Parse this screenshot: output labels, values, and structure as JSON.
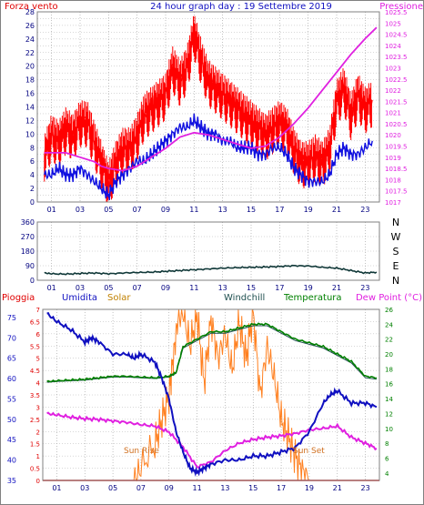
{
  "chart_data": [
    {
      "type": "line",
      "title": "24 hour graph day : 19 Settembre 2019",
      "left_axis_label": "Forza vento",
      "right_axis_label": "Pressione",
      "x_ticks": [
        "01",
        "03",
        "05",
        "07",
        "09",
        "11",
        "13",
        "15",
        "17",
        "19",
        "21",
        "23"
      ],
      "x_range": [
        0,
        24
      ],
      "left_ticks": [
        0,
        1,
        2,
        3,
        4,
        5,
        6,
        7,
        8,
        9,
        10,
        11,
        12,
        13,
        14,
        15,
        16,
        17,
        18,
        19,
        20,
        21,
        22,
        23,
        24,
        25,
        26,
        27,
        28
      ],
      "left_ylim": [
        0,
        28
      ],
      "right_ticks": [
        "1017",
        "1017.5",
        "1018",
        "1018.5",
        "1019",
        "1019.5",
        "1020",
        "1020.5",
        "1021",
        "1021.5",
        "1022",
        "1022.5",
        "1023",
        "1023.5",
        "1024",
        "1024.5",
        "1025",
        "1025.5"
      ],
      "right_ylim": [
        1017,
        1025.5
      ],
      "grid": true,
      "colors": {
        "gust": "#ff0000",
        "wind": "#1010e0",
        "pressure": "#e020e0"
      },
      "series": [
        {
          "name": "Forza vento",
          "role": "gust",
          "x": [
            0.5,
            1,
            1.5,
            2,
            2.5,
            3,
            3.5,
            4,
            4.5,
            5,
            5.5,
            6,
            6.5,
            7,
            7.5,
            8,
            8.5,
            9,
            9.5,
            10,
            10.5,
            11,
            11.5,
            12,
            12.5,
            13,
            13.5,
            14,
            14.5,
            15,
            15.5,
            16,
            16.5,
            17,
            17.5,
            18,
            18.5,
            19,
            19.5,
            20,
            20.5,
            21,
            21.5,
            22,
            22.5,
            23,
            23.5
          ],
          "values": [
            7,
            10,
            9,
            11,
            10,
            12,
            12,
            9,
            6,
            3,
            6,
            8,
            8,
            10,
            13,
            14,
            15,
            16,
            20,
            18,
            20,
            25,
            21,
            18,
            17,
            16,
            15,
            14,
            13,
            12,
            11,
            10,
            11,
            12,
            11,
            8,
            6,
            6,
            7,
            6,
            8,
            15,
            17,
            13,
            16,
            14,
            15
          ]
        },
        {
          "name": "",
          "role": "wind",
          "x": [
            0.5,
            1,
            1.5,
            2,
            2.5,
            3,
            3.5,
            4,
            4.5,
            5,
            5.5,
            6,
            6.5,
            7,
            7.5,
            8,
            8.5,
            9,
            9.5,
            10,
            10.5,
            11,
            11.5,
            12,
            12.5,
            13,
            13.5,
            14,
            14.5,
            15,
            15.5,
            16,
            16.5,
            17,
            17.5,
            18,
            18.5,
            19,
            19.5,
            20,
            20.5,
            21,
            21.5,
            22,
            22.5,
            23,
            23.5
          ],
          "values": [
            4,
            4,
            5,
            4,
            4,
            5,
            4,
            3,
            2,
            1,
            3,
            4,
            5,
            6,
            6,
            7,
            8,
            9,
            10,
            11,
            11,
            12,
            11,
            10,
            10,
            9,
            9,
            8,
            8,
            8,
            7,
            7,
            8,
            8,
            7,
            5,
            4,
            3,
            3,
            3,
            4,
            7,
            8,
            7,
            7,
            8,
            9
          ]
        },
        {
          "name": "Pressione",
          "role": "pressure",
          "x": [
            0.5,
            1,
            2,
            3,
            4,
            4.5,
            5,
            6,
            7,
            8,
            9,
            10,
            11,
            12,
            13,
            14,
            15,
            16,
            17,
            18,
            19,
            20,
            21,
            22,
            23,
            23.8
          ],
          "values": [
            1019.2,
            1019.2,
            1019.2,
            1019.0,
            1018.8,
            1018.6,
            1018.5,
            1018.4,
            1018.6,
            1019.0,
            1019.4,
            1019.9,
            1020.1,
            1020.0,
            1019.8,
            1019.6,
            1019.4,
            1019.5,
            1019.9,
            1020.5,
            1021.2,
            1022.0,
            1022.8,
            1023.6,
            1024.3,
            1024.8
          ]
        }
      ]
    },
    {
      "type": "line",
      "x_ticks": [
        "01",
        "03",
        "05",
        "07",
        "09",
        "11",
        "13",
        "15",
        "17",
        "19",
        "21",
        "23"
      ],
      "x_range": [
        0,
        24
      ],
      "left_ticks": [
        0,
        90,
        180,
        270,
        360
      ],
      "left_ylim": [
        0,
        360
      ],
      "right_labels": [
        "N",
        "W",
        "S",
        "E",
        "N"
      ],
      "grid": true,
      "series": [
        {
          "name": "",
          "role": "direction",
          "color": "#103838",
          "x": [
            0.5,
            1,
            2,
            3,
            4,
            5,
            6,
            7,
            8,
            9,
            10,
            11,
            12,
            13,
            14,
            15,
            16,
            17,
            18,
            19,
            20,
            21,
            22,
            23,
            23.8
          ],
          "values": [
            45,
            40,
            38,
            42,
            45,
            40,
            45,
            48,
            50,
            55,
            60,
            65,
            70,
            75,
            78,
            80,
            82,
            85,
            90,
            88,
            80,
            75,
            60,
            45,
            50
          ]
        }
      ]
    },
    {
      "type": "line",
      "labels_top": [
        "Pioggia",
        "Umidita",
        "Solar",
        "Windchill",
        "Temperatura",
        "Dew Point (°C)"
      ],
      "label_colors": [
        "#e00000",
        "#1010c0",
        "#c08000",
        "#205050",
        "#008000",
        "#e020e0"
      ],
      "x_ticks": [
        "01",
        "03",
        "05",
        "07",
        "09",
        "11",
        "13",
        "15",
        "17",
        "19",
        "21",
        "23"
      ],
      "x_range": [
        0,
        24
      ],
      "rain_ticks": [
        "0",
        "0.5",
        "1",
        "1.5",
        "2",
        "2.5",
        "3",
        "3.5",
        "4",
        "4.5",
        "5",
        "5.5",
        "6",
        "6.5",
        "7"
      ],
      "rain_ylim": [
        0,
        7
      ],
      "humidity_ticks": [
        35,
        40,
        45,
        50,
        55,
        60,
        65,
        70,
        75
      ],
      "humidity_ylim": [
        35,
        77
      ],
      "temp_ticks": [
        4,
        6,
        8,
        10,
        12,
        14,
        16,
        18,
        20,
        22,
        24,
        26
      ],
      "temp_ylim": [
        3,
        26
      ],
      "annotations": [
        "Sun Rise",
        "Sun Set"
      ],
      "series": [
        {
          "name": "Umidita",
          "role": "humidity",
          "color": "#1010c0",
          "x": [
            0.3,
            1,
            2,
            3,
            3.5,
            4,
            5,
            6,
            6.5,
            7,
            8,
            8.5,
            9,
            9.5,
            10,
            10.5,
            11,
            11.5,
            12,
            13,
            14,
            15,
            16,
            17,
            18,
            19,
            20,
            20.5,
            21,
            22,
            23,
            23.8
          ],
          "values": [
            76,
            74,
            72,
            69,
            70,
            69,
            66,
            66,
            65,
            66,
            64,
            60,
            55,
            47,
            42,
            38,
            37,
            38,
            39,
            40,
            40,
            41,
            41,
            42,
            43,
            47,
            54,
            56,
            57,
            54,
            54,
            53
          ]
        },
        {
          "name": "Temperatura",
          "role": "temperature",
          "color": "#008000",
          "x": [
            0.3,
            1,
            2,
            3,
            4,
            5,
            6,
            7,
            8,
            9,
            9.5,
            10,
            11,
            12,
            13,
            14,
            15,
            16,
            17,
            18,
            19,
            20,
            21,
            22,
            23,
            23.8
          ],
          "values": [
            16.3,
            16.4,
            16.5,
            16.6,
            16.8,
            17.0,
            17.0,
            16.9,
            16.8,
            17.0,
            17.5,
            21,
            22,
            23,
            23,
            23.5,
            24,
            24,
            23,
            22,
            21.5,
            21,
            20,
            19,
            17,
            16.8
          ]
        },
        {
          "name": "Dew Point (°C)",
          "role": "dewpoint",
          "color": "#e020e0",
          "x": [
            0.3,
            1,
            2,
            3,
            4,
            5,
            6,
            7,
            8,
            9,
            10,
            11,
            12,
            13,
            14,
            15,
            16,
            17,
            18,
            19,
            20,
            21,
            22,
            23,
            23.8
          ],
          "values": [
            12,
            11.8,
            11.5,
            11.3,
            11.2,
            11.0,
            10.8,
            10.5,
            10.3,
            9.5,
            7.5,
            4.8,
            5.5,
            7.0,
            8.0,
            8.5,
            8.8,
            9.0,
            9.3,
            9.8,
            10.0,
            10.3,
            8.8,
            8.0,
            7.3
          ]
        },
        {
          "name": "Windchill",
          "role": "windchill",
          "color": "#205050",
          "x": [
            0.3,
            1,
            2,
            3,
            4,
            5,
            6,
            7,
            8,
            9,
            9.5,
            10,
            11,
            12,
            13,
            14,
            15,
            16,
            17,
            18,
            19,
            20,
            21,
            22,
            23,
            23.8
          ],
          "values": [
            16.2,
            16.3,
            16.4,
            16.5,
            16.7,
            16.9,
            16.9,
            16.8,
            16.7,
            16.9,
            17.4,
            20.8,
            21.8,
            22.8,
            22.8,
            23.3,
            23.8,
            23.8,
            22.8,
            21.8,
            21.3,
            20.8,
            19.8,
            18.8,
            16.8,
            16.6
          ]
        },
        {
          "name": "Solar",
          "role": "solar",
          "color": "#ff8020",
          "x": [
            6.5,
            7,
            8,
            8.5,
            9,
            9.3,
            9.6,
            10,
            10.5,
            11,
            11.5,
            12,
            12.5,
            13,
            13.5,
            14,
            14.5,
            15,
            15.5,
            16,
            16.5,
            17,
            17.5,
            18,
            18.5,
            19
          ],
          "values": [
            0,
            0.5,
            1.5,
            2.5,
            3.5,
            5.0,
            6.5,
            6.9,
            5.5,
            6.8,
            4.0,
            6.6,
            5.0,
            6.0,
            4.5,
            6.5,
            5.0,
            6.9,
            3.5,
            5.5,
            4.2,
            2.5,
            1.8,
            1.0,
            0.4,
            0
          ]
        }
      ]
    }
  ]
}
